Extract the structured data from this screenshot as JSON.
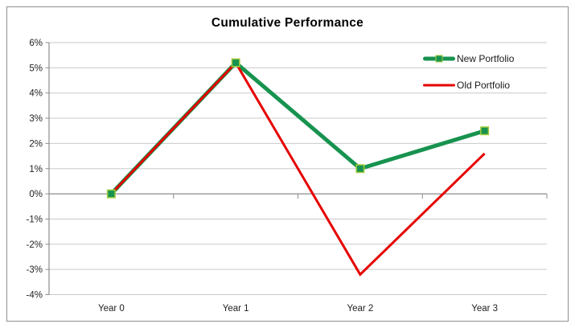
{
  "window": {
    "background": "#ffffff",
    "border_color": "#8f8f8f"
  },
  "chart_data": {
    "type": "line",
    "title": "Cumulative Performance",
    "categories": [
      "Year 0",
      "Year 1",
      "Year 2",
      "Year 3"
    ],
    "series": [
      {
        "name": "New Portfolio",
        "color": "#17934f",
        "marker": "square",
        "marker_border": "#a4cc3f",
        "line_width": 5,
        "values": [
          0,
          5.2,
          1.0,
          2.5
        ]
      },
      {
        "name": "Old Portfolio",
        "color": "#e60000",
        "marker": "none",
        "marker_border": "",
        "line_width": 3,
        "values": [
          0,
          5.2,
          -3.2,
          1.6
        ]
      }
    ],
    "ylim": [
      -4,
      6
    ],
    "ytick_labels": [
      "6%",
      "5%",
      "4%",
      "3%",
      "2%",
      "1%",
      "0%",
      "-1%",
      "-2%",
      "-3%",
      "-4%"
    ],
    "xlabel": "",
    "ylabel": "",
    "grid": "horizontal",
    "legend_position": "top-right",
    "grid_color": "#c9c9c9",
    "axis_color": "#8c8c8c",
    "text_color": "#1f1f1f"
  }
}
